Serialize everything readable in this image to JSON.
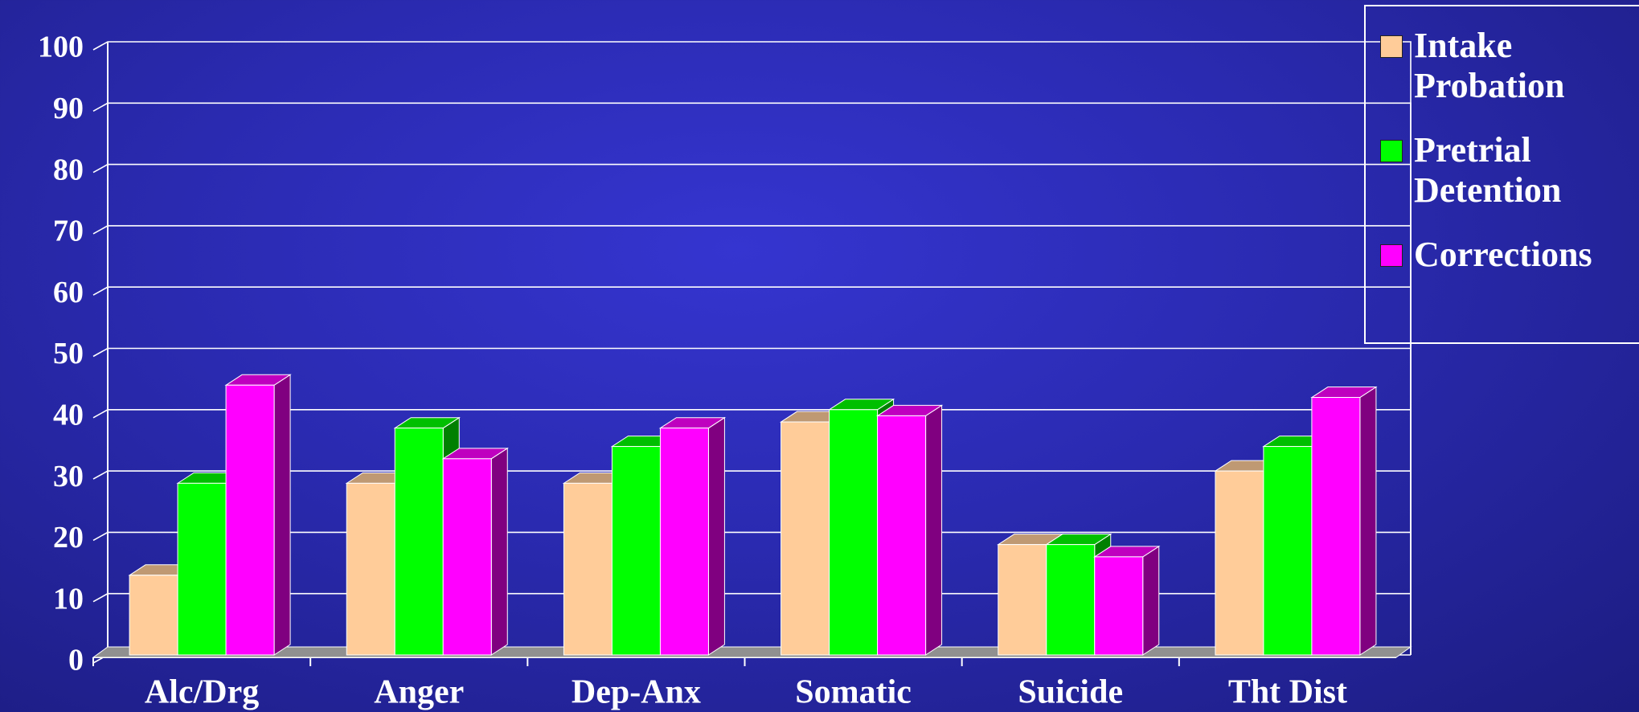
{
  "chart_data": {
    "type": "bar",
    "categories": [
      "Alc/Drg",
      "Anger",
      "Dep-Anx",
      "Somatic",
      "Suicide",
      "Tht Dist"
    ],
    "series": [
      {
        "name": "Intake Probation",
        "color": "#ffcc99",
        "values": [
          13,
          28,
          28,
          38,
          18,
          30
        ]
      },
      {
        "name": "Pretrial Detention",
        "color": "#00ff00",
        "values": [
          28,
          37,
          34,
          40,
          18,
          34
        ]
      },
      {
        "name": "Corrections",
        "color": "#ff00ff",
        "values": [
          44,
          32,
          37,
          39,
          16,
          42
        ]
      }
    ],
    "ylim": [
      0,
      100
    ],
    "yticks": [
      0,
      10,
      20,
      30,
      40,
      50,
      60,
      70,
      80,
      90,
      100
    ],
    "grid": true
  }
}
